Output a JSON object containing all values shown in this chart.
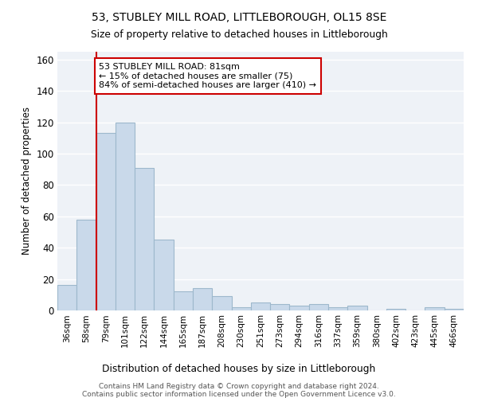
{
  "title": "53, STUBLEY MILL ROAD, LITTLEBOROUGH, OL15 8SE",
  "subtitle": "Size of property relative to detached houses in Littleborough",
  "xlabel": "Distribution of detached houses by size in Littleborough",
  "ylabel": "Number of detached properties",
  "categories": [
    "36sqm",
    "58sqm",
    "79sqm",
    "101sqm",
    "122sqm",
    "144sqm",
    "165sqm",
    "187sqm",
    "208sqm",
    "230sqm",
    "251sqm",
    "273sqm",
    "294sqm",
    "316sqm",
    "337sqm",
    "359sqm",
    "380sqm",
    "402sqm",
    "423sqm",
    "445sqm",
    "466sqm"
  ],
  "values": [
    16,
    58,
    113,
    120,
    91,
    45,
    12,
    14,
    9,
    2,
    5,
    4,
    3,
    4,
    2,
    3,
    0,
    1,
    0,
    2,
    1
  ],
  "bar_color": "#c9d9ea",
  "bar_edge_color": "#9db8cc",
  "annotation_text": "53 STUBLEY MILL ROAD: 81sqm\n← 15% of detached houses are smaller (75)\n84% of semi-detached houses are larger (410) →",
  "annotation_box_color": "#ffffff",
  "annotation_box_edge_color": "#cc0000",
  "vline_color": "#cc0000",
  "vline_bar_index": 2,
  "ylim": [
    0,
    165
  ],
  "yticks": [
    0,
    20,
    40,
    60,
    80,
    100,
    120,
    140,
    160
  ],
  "background_color": "#eef2f7",
  "footer_line1": "Contains HM Land Registry data © Crown copyright and database right 2024.",
  "footer_line2": "Contains public sector information licensed under the Open Government Licence v3.0."
}
